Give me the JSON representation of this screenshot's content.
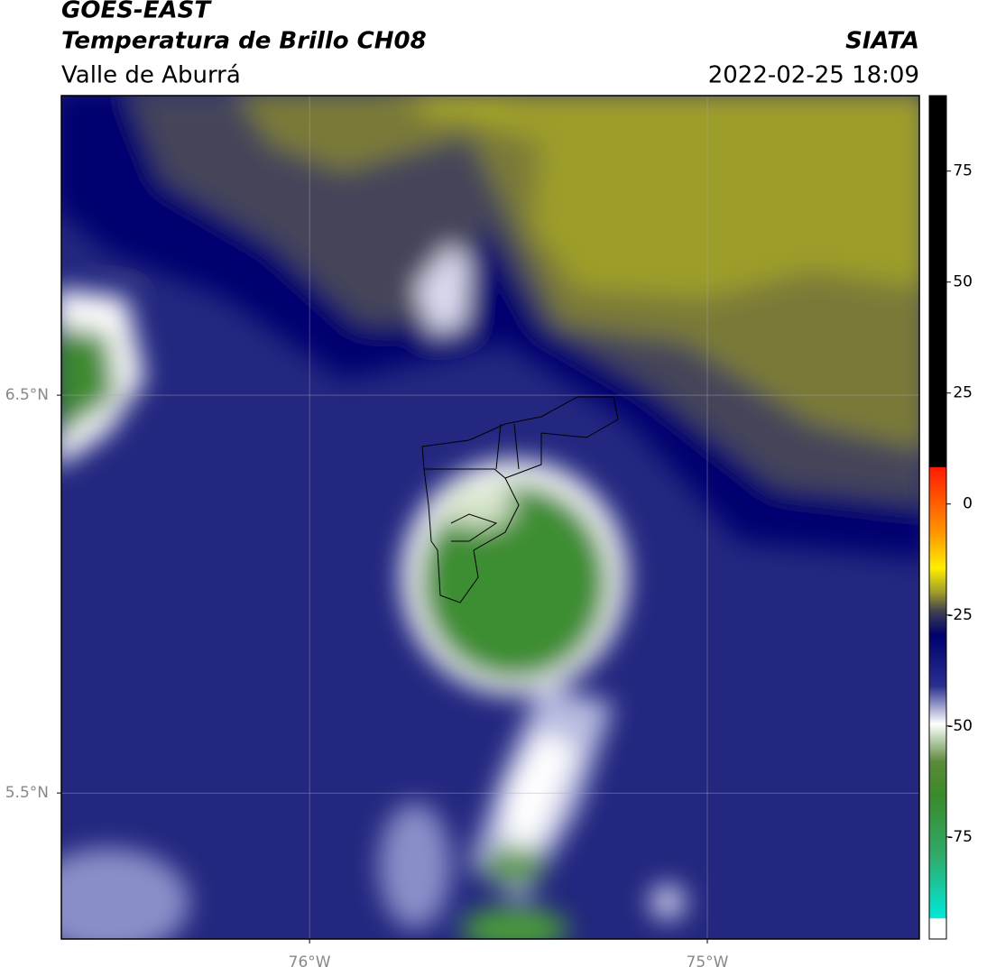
{
  "header": {
    "title": "GOES-EAST",
    "subtitle": "Temperatura de Brillo CH08",
    "region": "Valle de Aburrá",
    "source": "SIATA",
    "datetime": "2022-02-25 18:09"
  },
  "map": {
    "lonlim": [
      -76.624,
      -74.467
    ],
    "latlim": [
      5.133,
      7.253
    ],
    "lon_ticks": [
      {
        "value": -76,
        "label": "76°W"
      },
      {
        "value": -75,
        "label": "75°W"
      }
    ],
    "lat_ticks": [
      {
        "value": 6.5,
        "label": "6.5°N"
      },
      {
        "value": 5.5,
        "label": "5.5°N"
      }
    ]
  },
  "colorbar": {
    "range": [
      -98,
      92
    ],
    "ticks": [
      75,
      50,
      25,
      0,
      -25,
      -50,
      -75
    ]
  }
}
